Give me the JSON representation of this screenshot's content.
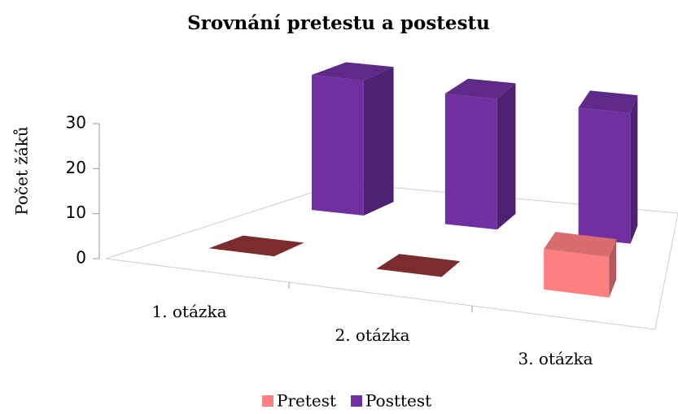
{
  "chart_data": {
    "type": "bar3d",
    "title": "Srovnání pretestu a postestu",
    "y_label": "Počet žáků",
    "categories": [
      "1. otázka",
      "2. otázka",
      "3. otázka"
    ],
    "series": [
      {
        "name": "Pretest",
        "color": "#ff8080",
        "values": [
          0,
          0,
          9
        ]
      },
      {
        "name": "Posttest",
        "color": "#7030a0",
        "values": [
          30,
          29,
          29
        ]
      }
    ],
    "ylim": [
      0,
      30
    ],
    "yticks": [
      0,
      10,
      20,
      30
    ],
    "legend": "bottom"
  }
}
